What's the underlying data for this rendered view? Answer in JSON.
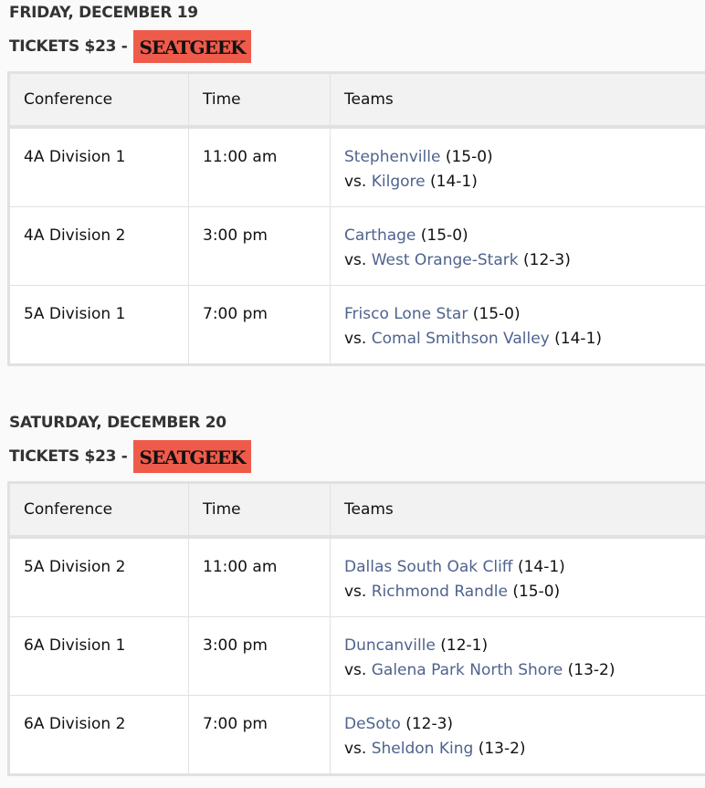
{
  "colors": {
    "badge": "#ef5b4b",
    "link": "#4f638d",
    "header_bg": "#f2f2f2"
  },
  "days": [
    {
      "title": "FRIDAY, DECEMBER 19",
      "tickets": "TICKETS $23 -",
      "badge": "SEATGEEK",
      "headers": [
        "Conference",
        "Time",
        "Teams"
      ],
      "rows": [
        {
          "conference": "4A Division 1",
          "time": "11:00 am",
          "team1": "Stephenville",
          "rec1": "(15-0)",
          "vs": "vs.",
          "team2": "Kilgore",
          "rec2": "(14-1)"
        },
        {
          "conference": "4A Division 2",
          "time": "3:00 pm",
          "team1": "Carthage",
          "rec1": "(15-0)",
          "vs": "vs.",
          "team2": "West Orange-Stark",
          "rec2": "(12-3)"
        },
        {
          "conference": "5A Division 1",
          "time": "7:00 pm",
          "team1": "Frisco Lone Star",
          "rec1": "(15-0)",
          "vs": "vs.",
          "team2": "Comal Smithson Valley",
          "rec2": "(14-1)"
        }
      ]
    },
    {
      "title": "SATURDAY, DECEMBER 20",
      "tickets": "TICKETS $23 -",
      "badge": "SEATGEEK",
      "headers": [
        "Conference",
        "Time",
        "Teams"
      ],
      "rows": [
        {
          "conference": "5A Division 2",
          "time": "11:00 am",
          "team1": "Dallas South Oak Cliff",
          "rec1": "(14-1)",
          "vs": "vs.",
          "team2": "Richmond Randle",
          "rec2": "(15-0)"
        },
        {
          "conference": "6A Division 1",
          "time": "3:00 pm",
          "team1": "Duncanville",
          "rec1": "(12-1)",
          "vs": "vs.",
          "team2": "Galena Park North Shore",
          "rec2": "(13-2)"
        },
        {
          "conference": "6A Division 2",
          "time": "7:00 pm",
          "team1": "DeSoto",
          "rec1": "(12-3)",
          "vs": "vs.",
          "team2": "Sheldon King",
          "rec2": "(13-2)"
        }
      ]
    }
  ]
}
